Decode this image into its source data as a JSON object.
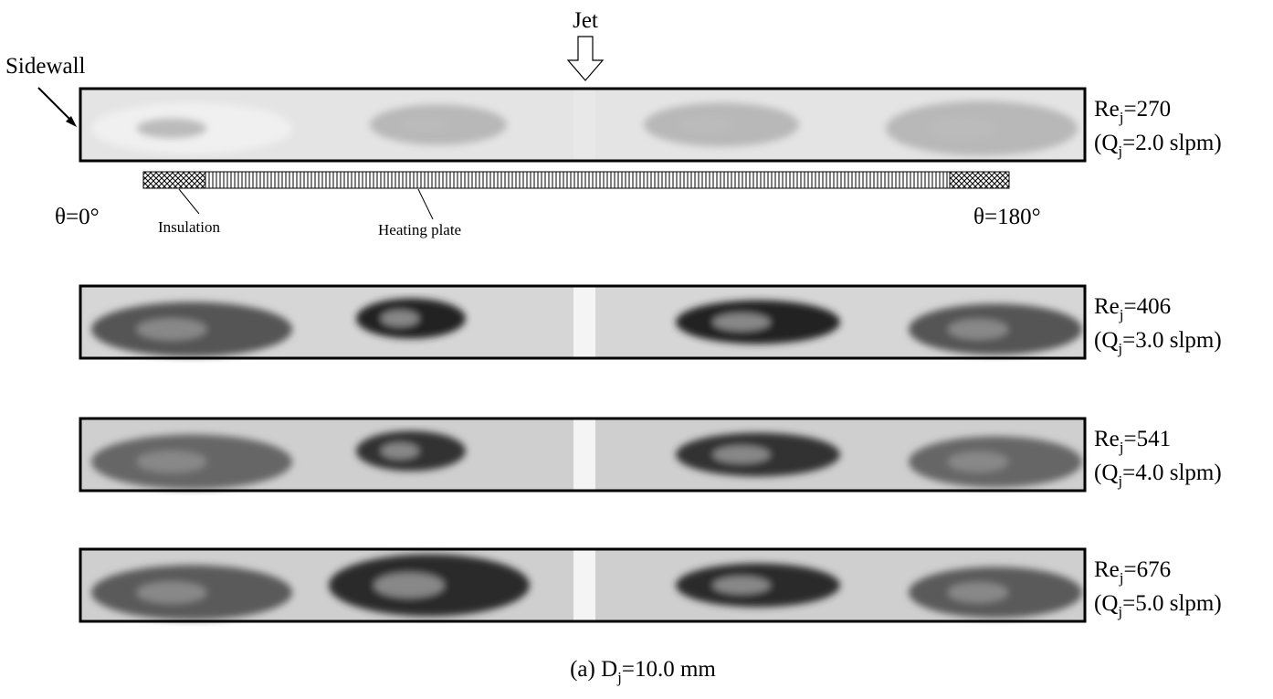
{
  "jet_label": "Jet",
  "sidewall_label": "Sidewall",
  "theta_start": "θ=0°",
  "theta_end": "θ=180°",
  "insulation_label": "Insulation",
  "heating_plate_label": "Heating plate",
  "panels": [
    {
      "re": {
        "base": "Re",
        "sub": "j",
        "value": "=270"
      },
      "q": {
        "base": "(Q",
        "sub": "j",
        "value": "=2.0 slpm)"
      }
    },
    {
      "re": {
        "base": "Re",
        "sub": "j",
        "value": "=406"
      },
      "q": {
        "base": "(Q",
        "sub": "j",
        "value": "=3.0 slpm)"
      }
    },
    {
      "re": {
        "base": "Re",
        "sub": "j",
        "value": "=541"
      },
      "q": {
        "base": "(Q",
        "sub": "j",
        "value": "=4.0 slpm)"
      }
    },
    {
      "re": {
        "base": "Re",
        "sub": "j",
        "value": "=676"
      },
      "q": {
        "base": "(Q",
        "sub": "j",
        "value": "=5.0 slpm)"
      }
    }
  ],
  "caption": {
    "base": "(a) D",
    "sub": "j",
    "value": "=10.0 mm"
  }
}
